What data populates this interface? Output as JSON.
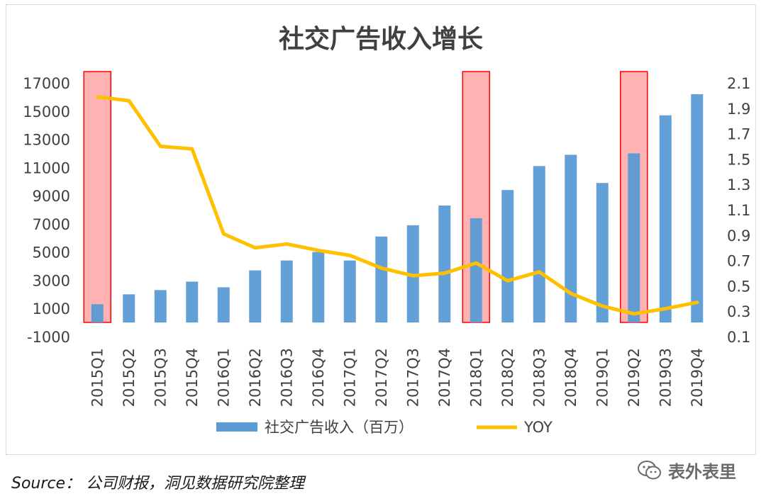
{
  "chart_data": {
    "type": "bar+line",
    "title": "社交广告收入增长",
    "categories": [
      "2015Q1",
      "2015Q2",
      "2015Q3",
      "2015Q4",
      "2016Q1",
      "2016Q2",
      "2016Q3",
      "2016Q4",
      "2017Q1",
      "2017Q2",
      "2017Q3",
      "2017Q4",
      "2018Q1",
      "2018Q2",
      "2018Q3",
      "2018Q4",
      "2019Q1",
      "2019Q2",
      "2019Q3",
      "2019Q4"
    ],
    "series": [
      {
        "name": "社交广告收入（百万）",
        "kind": "bar",
        "axis": "left",
        "color": "#5b9bd5",
        "values": [
          1300,
          2000,
          2300,
          2900,
          2500,
          3700,
          4400,
          5000,
          4400,
          6100,
          6900,
          8300,
          7400,
          9400,
          11100,
          11900,
          9900,
          12000,
          14700,
          16200
        ]
      },
      {
        "name": "YOY",
        "kind": "line",
        "axis": "right",
        "color": "#ffc000",
        "values": [
          1.99,
          1.96,
          1.6,
          1.58,
          0.91,
          0.8,
          0.83,
          0.78,
          0.74,
          0.64,
          0.58,
          0.6,
          0.68,
          0.54,
          0.61,
          0.44,
          0.34,
          0.28,
          0.32,
          0.37
        ]
      }
    ],
    "y_left": {
      "min": -1000,
      "max": 17000,
      "step": 2000,
      "ticks": [
        "-1000",
        "1000",
        "3000",
        "5000",
        "7000",
        "9000",
        "11000",
        "13000",
        "15000",
        "17000"
      ]
    },
    "y_right": {
      "min": 0.1,
      "max": 2.1,
      "step": 0.2,
      "ticks": [
        "0.1",
        "0.3",
        "0.5",
        "0.7",
        "0.9",
        "1.1",
        "1.3",
        "1.5",
        "1.7",
        "1.9",
        "2.1"
      ]
    },
    "highlights": [
      "2015Q1",
      "2018Q1",
      "2019Q2"
    ],
    "highlight_color": "#ff0000",
    "legend_position": "bottom",
    "grid": false
  },
  "source": "Source： 公司财报，洞见数据研究院整理",
  "watermark": {
    "text": "表外表里",
    "icon": "wechat-icon"
  }
}
